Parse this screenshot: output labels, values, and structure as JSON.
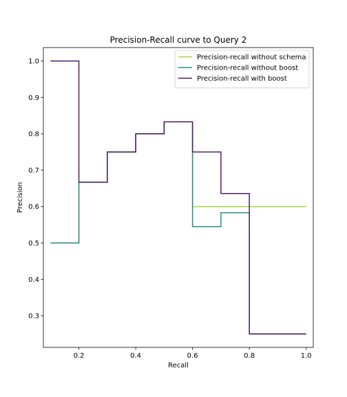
{
  "chart_data": {
    "type": "line",
    "step": "post",
    "title": "Precision-Recall curve to Query 2",
    "xlabel": "Recall",
    "ylabel": "Precision",
    "xlim": [
      0.075,
      1.025
    ],
    "ylim": [
      0.213,
      1.037
    ],
    "xticks": [
      0.2,
      0.4,
      0.6,
      0.8,
      1.0
    ],
    "xtick_labels": [
      "0.2",
      "0.4",
      "0.6",
      "0.8",
      "1.0"
    ],
    "yticks": [
      0.3,
      0.4,
      0.5,
      0.6,
      0.7,
      0.8,
      0.9,
      1.0
    ],
    "ytick_labels": [
      "0.3",
      "0.4",
      "0.5",
      "0.6",
      "0.7",
      "0.8",
      "0.9",
      "1.0"
    ],
    "grid": false,
    "legend_position": "top-right",
    "x": [
      0.1,
      0.2,
      0.3,
      0.4,
      0.5,
      0.6,
      0.7,
      0.8,
      0.9,
      1.0
    ],
    "series": [
      {
        "name": "Precision-recall without schema",
        "color": "#a0da39",
        "values": [
          0.5,
          0.667,
          0.75,
          0.8,
          0.833,
          0.6,
          0.6,
          0.6,
          0.6,
          0.6
        ]
      },
      {
        "name": "Precision-recall without boost",
        "color": "#2a8b8b",
        "values": [
          0.5,
          0.667,
          0.75,
          0.8,
          0.833,
          0.545,
          0.583,
          0.25,
          0.25,
          0.25
        ]
      },
      {
        "name": "Precision-recall with boost",
        "color": "#4f1d63",
        "values": [
          1.0,
          0.667,
          0.75,
          0.8,
          0.833,
          0.75,
          0.636,
          0.25,
          0.25,
          0.25
        ]
      }
    ]
  }
}
